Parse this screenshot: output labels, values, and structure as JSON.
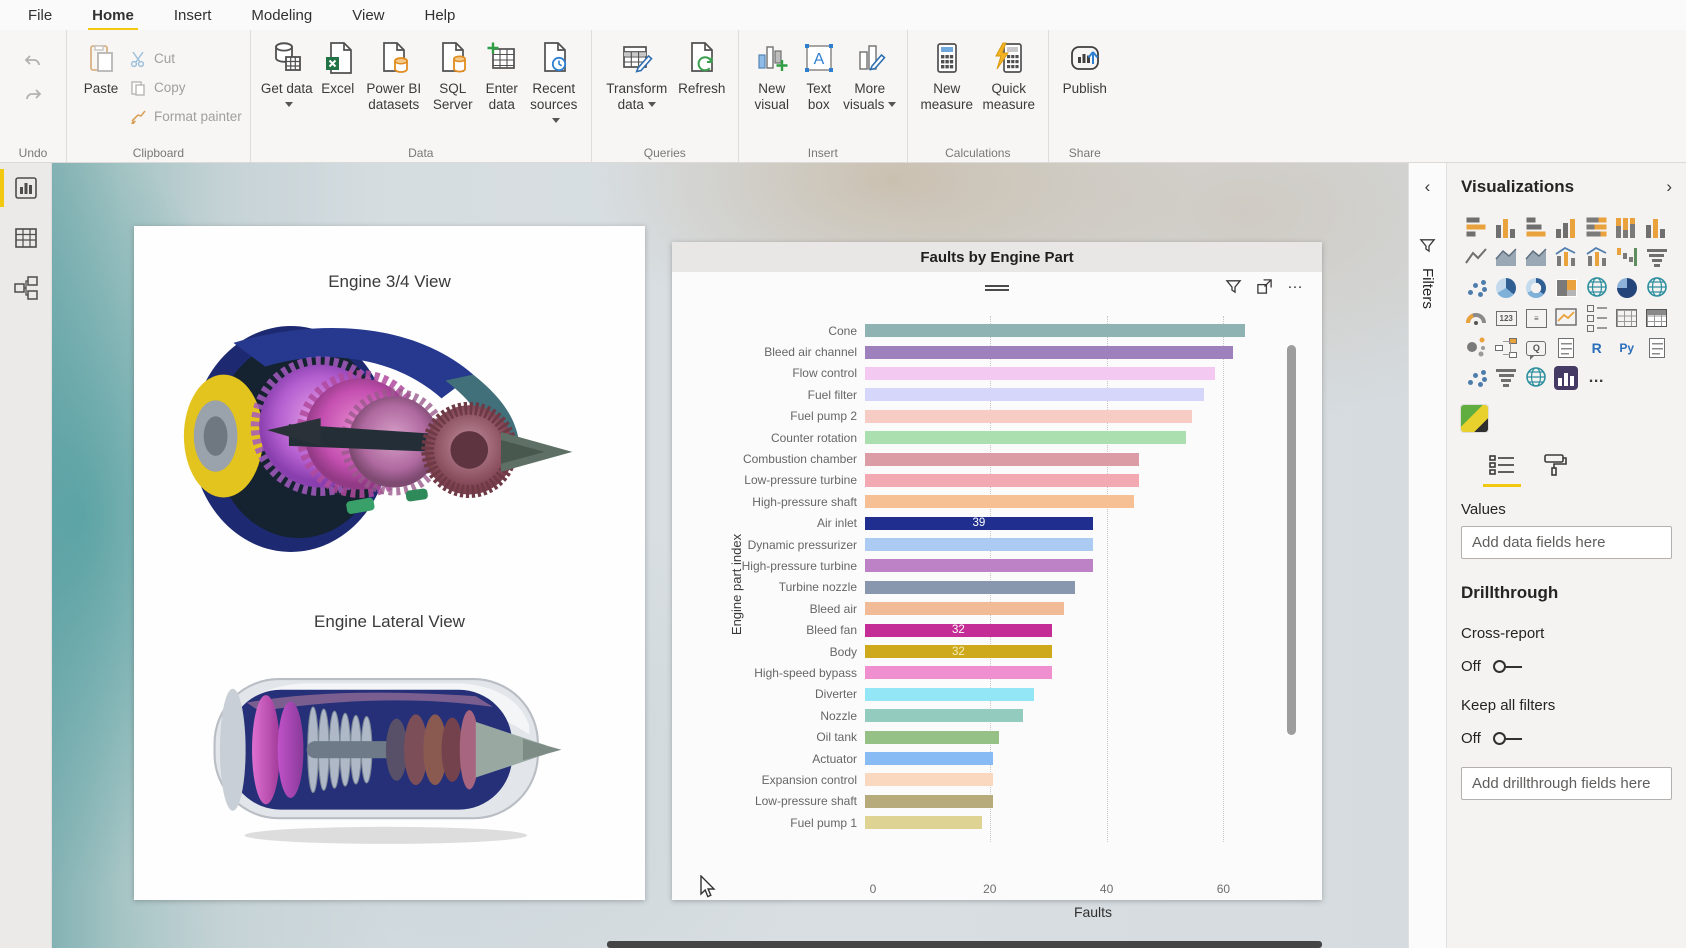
{
  "menubar": {
    "items": [
      {
        "label": "File"
      },
      {
        "label": "Home",
        "active": true
      },
      {
        "label": "Insert"
      },
      {
        "label": "Modeling"
      },
      {
        "label": "View"
      },
      {
        "label": "Help"
      }
    ]
  },
  "ribbon": {
    "groups": [
      {
        "label": "Undo"
      },
      {
        "label": "Clipboard",
        "buttons": [
          {
            "label": "Paste"
          },
          {
            "label": "Cut"
          },
          {
            "label": "Copy"
          },
          {
            "label": "Format painter"
          }
        ]
      },
      {
        "label": "Data",
        "buttons": [
          {
            "label": "Get data"
          },
          {
            "label": "Excel"
          },
          {
            "label": "Power BI datasets"
          },
          {
            "label": "SQL Server"
          },
          {
            "label": "Enter data"
          },
          {
            "label": "Recent sources"
          }
        ]
      },
      {
        "label": "Queries",
        "buttons": [
          {
            "label": "Transform data"
          },
          {
            "label": "Refresh"
          }
        ]
      },
      {
        "label": "Insert",
        "buttons": [
          {
            "label": "New visual"
          },
          {
            "label": "Text box"
          },
          {
            "label": "More visuals"
          }
        ]
      },
      {
        "label": "Calculations",
        "buttons": [
          {
            "label": "New measure"
          },
          {
            "label": "Quick measure"
          }
        ]
      },
      {
        "label": "Share",
        "buttons": [
          {
            "label": "Publish"
          }
        ]
      }
    ]
  },
  "canvas": {
    "left_card": {
      "top_title": "Engine 3/4 View",
      "bottom_title": "Engine Lateral View"
    }
  },
  "filters_rail": {
    "title": "Filters"
  },
  "visualizations": {
    "title": "Visualizations",
    "values_label": "Values",
    "add_fields_placeholder": "Add data fields here",
    "icons": [
      {
        "name": "stacked-bar-chart",
        "type": "barsH"
      },
      {
        "name": "stacked-column-chart",
        "type": "barsV"
      },
      {
        "name": "clustered-bar-chart",
        "type": "barsH2"
      },
      {
        "name": "clustered-column-chart",
        "type": "barsV2"
      },
      {
        "name": "100-stacked-bar-chart",
        "type": "barsHF"
      },
      {
        "name": "100-stacked-column-chart",
        "type": "barsVF"
      },
      {
        "name": "ribbon-chart",
        "type": "barsV"
      },
      {
        "name": "line-chart",
        "type": "line"
      },
      {
        "name": "area-chart",
        "type": "area"
      },
      {
        "name": "stacked-area-chart",
        "type": "area"
      },
      {
        "name": "line-and-stacked-column-chart",
        "type": "combo"
      },
      {
        "name": "line-and-clustered-column-chart",
        "type": "combo"
      },
      {
        "name": "waterfall-chart",
        "type": "waterfall"
      },
      {
        "name": "funnel-chart",
        "type": "funnel"
      },
      {
        "name": "scatter-chart",
        "type": "dots"
      },
      {
        "name": "pie-chart",
        "type": "pie"
      },
      {
        "name": "donut-chart",
        "type": "donut"
      },
      {
        "name": "treemap",
        "type": "treemap"
      },
      {
        "name": "map",
        "type": "globe"
      },
      {
        "name": "filled-map",
        "type": "pieD"
      },
      {
        "name": "shape-map",
        "type": "globe"
      },
      {
        "name": "gauge",
        "type": "gauge"
      },
      {
        "name": "card",
        "type": "card"
      },
      {
        "name": "multi-row-card",
        "type": "mcard"
      },
      {
        "name": "kpi",
        "type": "kpi"
      },
      {
        "name": "slicer",
        "type": "slicer"
      },
      {
        "name": "table",
        "type": "tableg"
      },
      {
        "name": "matrix",
        "type": "matrixg"
      },
      {
        "name": "key-influencers",
        "type": "influx"
      },
      {
        "name": "decomposition-tree",
        "type": "tree"
      },
      {
        "name": "q-and-a",
        "type": "qa"
      },
      {
        "name": "smart-narrative",
        "type": "doc"
      },
      {
        "name": "r-script-visual",
        "type": "R"
      },
      {
        "name": "python-visual",
        "type": "Py"
      },
      {
        "name": "paginated-report",
        "type": "doc"
      },
      {
        "name": "power-apps",
        "type": "dots"
      },
      {
        "name": "power-automate",
        "type": "funnel"
      },
      {
        "name": "arcgis-map",
        "type": "globe"
      },
      {
        "name": "selected-custom-visual",
        "type": "purpleSel"
      },
      {
        "name": "more-options",
        "type": "more"
      }
    ]
  },
  "drillthrough": {
    "title": "Drillthrough",
    "cross_report_label": "Cross-report",
    "cross_report_state": "Off",
    "keep_filters_label": "Keep all filters",
    "keep_filters_state": "Off",
    "add_fields_placeholder": "Add drillthrough fields here"
  },
  "chart_data": {
    "type": "bar",
    "orientation": "horizontal",
    "title": "Faults by Engine Part",
    "xlabel": "Faults",
    "ylabel": "Engine part index",
    "xlim": [
      0,
      68
    ],
    "xticks": [
      0,
      20,
      40,
      60
    ],
    "grid": "dotted-vertical",
    "sort": "descending",
    "categories": [
      "Cone",
      "Bleed air channel",
      "Flow control",
      "Fuel filter",
      "Fuel pump 2",
      "Counter rotation",
      "Combustion chamber",
      "Low-pressure turbine",
      "High-pressure shaft",
      "Air inlet",
      "Dynamic pressurizer",
      "High-pressure turbine",
      "Turbine nozzle",
      "Bleed air",
      "Bleed fan",
      "Body",
      "High-speed bypass",
      "Diverter",
      "Nozzle",
      "Oil tank",
      "Actuator",
      "Expansion control",
      "Low-pressure shaft",
      "Fuel pump 1"
    ],
    "values": [
      65,
      63,
      60,
      58,
      56,
      55,
      47,
      47,
      46,
      39,
      39,
      39,
      36,
      34,
      32,
      32,
      32,
      29,
      27,
      23,
      22,
      22,
      22,
      20
    ],
    "colors": [
      "#8FB2B2",
      "#9D80BC",
      "#F4C9F1",
      "#D6D6FA",
      "#F6CCC4",
      "#ABDFB0",
      "#DB9CA6",
      "#F2A9B2",
      "#F6C094",
      "#202E8F",
      "#ABCBF3",
      "#BD82C6",
      "#8897AE",
      "#F2BB97",
      "#C42D96",
      "#CDA91B",
      "#F08FD0",
      "#92E6F6",
      "#93CBBF",
      "#95C086",
      "#88BBF4",
      "#FAD8C0",
      "#B7AB7B",
      "#DED393"
    ],
    "data_labels": [
      null,
      null,
      null,
      null,
      null,
      null,
      null,
      null,
      null,
      "39",
      null,
      null,
      null,
      null,
      "32",
      "32",
      null,
      null,
      null,
      null,
      null,
      null,
      null,
      null
    ],
    "data_label_colors": [
      null,
      null,
      null,
      null,
      null,
      null,
      null,
      null,
      null,
      "#ffffff",
      null,
      null,
      null,
      null,
      "#ffffff",
      "#f6ecc0",
      null,
      null,
      null,
      null,
      null,
      null,
      null,
      null
    ]
  }
}
